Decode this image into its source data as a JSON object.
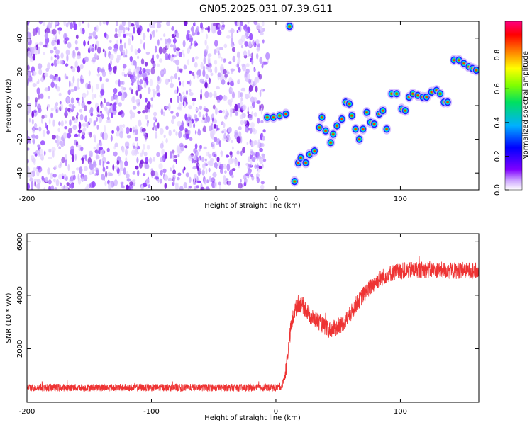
{
  "title": "GN05.2025.031.07.39.G11",
  "chart_data": [
    {
      "type": "heatmap",
      "xlabel": "Height of straight line (km)",
      "ylabel": "Frequency (Hz)",
      "xlim": [
        -200,
        163
      ],
      "ylim": [
        -50,
        50
      ],
      "xticks": [
        -200,
        -100,
        0,
        100
      ],
      "yticks": [
        -40,
        -20,
        0,
        20,
        40
      ],
      "noise_region_x": [
        -200,
        -10
      ],
      "colorbar": {
        "label": "Normalized spectral amplitude",
        "ticks": [
          0.0,
          0.2,
          0.4,
          0.6,
          0.8
        ],
        "colors": [
          "#ffffff",
          "#8000ff",
          "#0000ff",
          "#00c0ff",
          "#00e000",
          "#ffff00",
          "#ff8000",
          "#ff0000",
          "#ff0080"
        ]
      },
      "signal_track": [
        {
          "x": -7,
          "y": -7
        },
        {
          "x": -2,
          "y": -7
        },
        {
          "x": 3,
          "y": -6
        },
        {
          "x": 8,
          "y": -5
        },
        {
          "x": 11,
          "y": 47
        },
        {
          "x": 15,
          "y": -45
        },
        {
          "x": 18,
          "y": -34
        },
        {
          "x": 20,
          "y": -31
        },
        {
          "x": 24,
          "y": -34
        },
        {
          "x": 27,
          "y": -29
        },
        {
          "x": 31,
          "y": -27
        },
        {
          "x": 35,
          "y": -13
        },
        {
          "x": 37,
          "y": -7
        },
        {
          "x": 40,
          "y": -15
        },
        {
          "x": 44,
          "y": -22
        },
        {
          "x": 46,
          "y": -17
        },
        {
          "x": 49,
          "y": -12
        },
        {
          "x": 53,
          "y": -8
        },
        {
          "x": 56,
          "y": 2
        },
        {
          "x": 59,
          "y": 1
        },
        {
          "x": 61,
          "y": -6
        },
        {
          "x": 64,
          "y": -14
        },
        {
          "x": 67,
          "y": -20
        },
        {
          "x": 70,
          "y": -14
        },
        {
          "x": 73,
          "y": -4
        },
        {
          "x": 76,
          "y": -10
        },
        {
          "x": 79,
          "y": -11
        },
        {
          "x": 83,
          "y": -5
        },
        {
          "x": 86,
          "y": -3
        },
        {
          "x": 89,
          "y": -14
        },
        {
          "x": 93,
          "y": 7
        },
        {
          "x": 97,
          "y": 7
        },
        {
          "x": 101,
          "y": -2
        },
        {
          "x": 104,
          "y": -3
        },
        {
          "x": 107,
          "y": 5
        },
        {
          "x": 110,
          "y": 7
        },
        {
          "x": 114,
          "y": 6
        },
        {
          "x": 118,
          "y": 5
        },
        {
          "x": 121,
          "y": 5
        },
        {
          "x": 125,
          "y": 8
        },
        {
          "x": 129,
          "y": 9
        },
        {
          "x": 132,
          "y": 7
        },
        {
          "x": 135,
          "y": 2
        },
        {
          "x": 138,
          "y": 2
        },
        {
          "x": 143,
          "y": 27
        },
        {
          "x": 147,
          "y": 27
        },
        {
          "x": 151,
          "y": 25
        },
        {
          "x": 155,
          "y": 23
        },
        {
          "x": 158,
          "y": 22
        },
        {
          "x": 161,
          "y": 21
        }
      ]
    },
    {
      "type": "line",
      "xlabel": "Height of straight line (km)",
      "ylabel": "SNR (10 * v/v)",
      "xlim": [
        -200,
        163
      ],
      "ylim": [
        0,
        6300
      ],
      "xticks": [
        -200,
        -100,
        0,
        100
      ],
      "yticks": [
        2000,
        4000,
        6000
      ],
      "color": "#ee3333",
      "series": [
        {
          "x": [
            -200,
            -150,
            -100,
            -50,
            -10,
            0,
            5,
            8,
            12,
            15,
            18,
            22,
            28,
            35,
            42,
            50,
            55,
            60,
            65,
            70,
            75,
            80,
            90,
            100,
            110,
            120,
            130,
            140,
            150,
            163
          ],
          "values": [
            550,
            550,
            550,
            550,
            550,
            550,
            600,
            1200,
            2800,
            3400,
            3700,
            3600,
            3200,
            3000,
            2700,
            2800,
            3000,
            3300,
            3700,
            4000,
            4250,
            4500,
            4800,
            4900,
            4950,
            4950,
            4950,
            4900,
            4950,
            4900
          ]
        }
      ]
    }
  ]
}
